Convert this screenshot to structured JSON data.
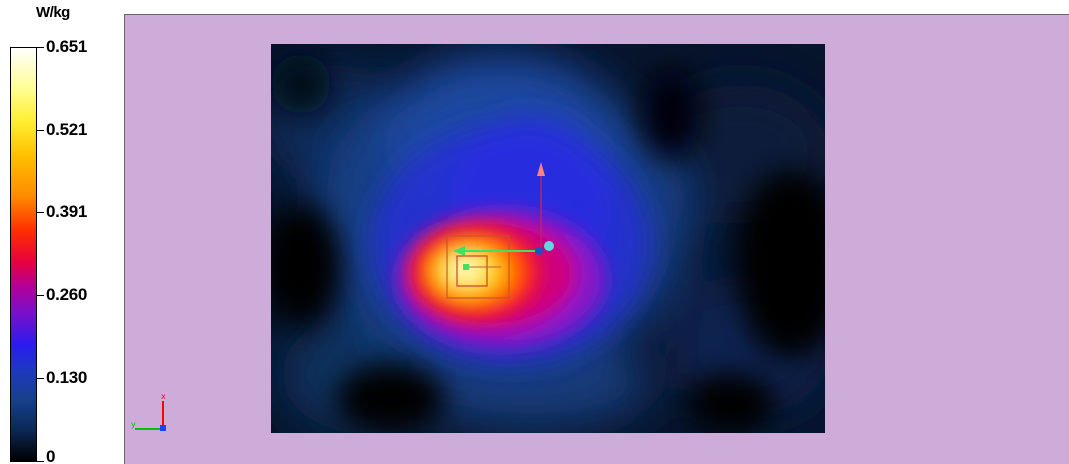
{
  "colorbar": {
    "unit": "W/kg",
    "ticks": [
      {
        "label": "0.651",
        "value": 0.651
      },
      {
        "label": "0.521",
        "value": 0.521
      },
      {
        "label": "0.391",
        "value": 0.391
      },
      {
        "label": "0.260",
        "value": 0.26
      },
      {
        "label": "0.130",
        "value": 0.13
      },
      {
        "label": "0",
        "value": 0
      }
    ],
    "max": 0.651,
    "min": 0
  },
  "viewport": {
    "background_color": "#ceacd9",
    "map_type": "SAR heatmap",
    "axes_icon": {
      "x_label": "x",
      "y_label": "y"
    }
  }
}
